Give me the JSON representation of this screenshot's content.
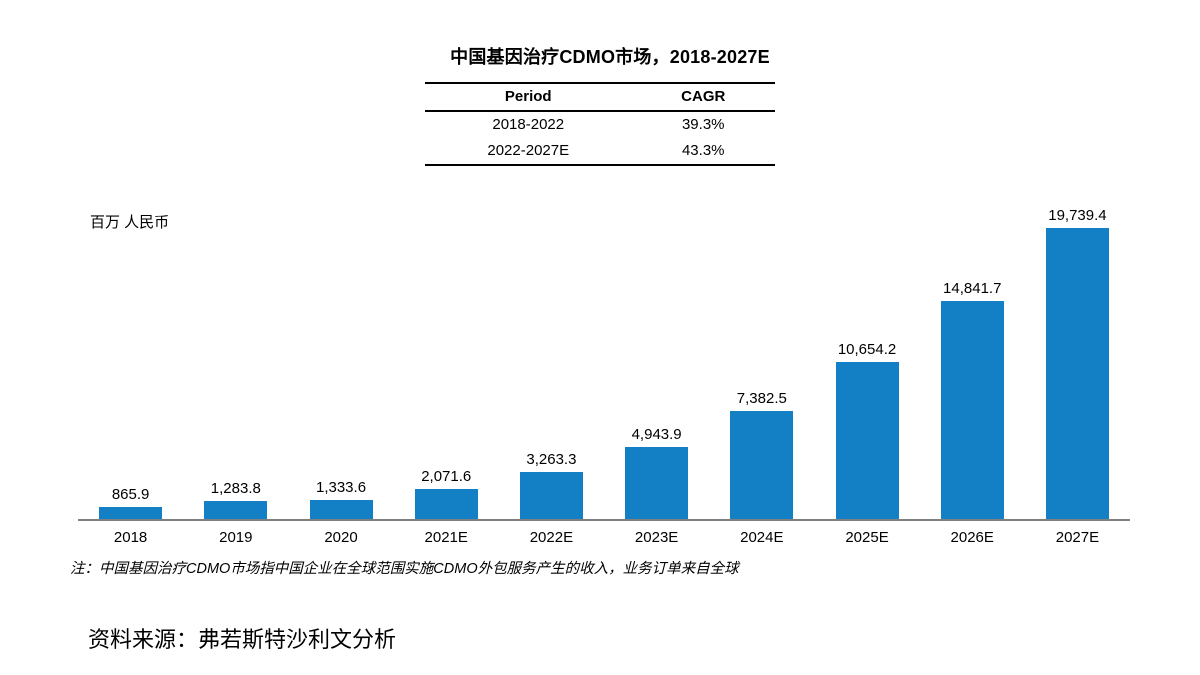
{
  "header": {
    "title": "中国基因治疗CDMO市场，2018-2027E"
  },
  "cagr_table": {
    "headers": [
      "Period",
      "CAGR"
    ],
    "rows": [
      {
        "period": "2018-2022",
        "cagr": "39.3%"
      },
      {
        "period": "2022-2027E",
        "cagr": "43.3%"
      }
    ]
  },
  "chart_data": {
    "type": "bar",
    "title": "中国基因治疗CDMO市场，2018-2027E",
    "unit_label": "百万 人民币",
    "xlabel": "",
    "ylabel": "百万 人民币",
    "categories": [
      "2018",
      "2019",
      "2020",
      "2021E",
      "2022E",
      "2023E",
      "2024E",
      "2025E",
      "2026E",
      "2027E"
    ],
    "values": [
      865.9,
      1283.8,
      1333.6,
      2071.6,
      3263.3,
      4943.9,
      7382.5,
      10654.2,
      14841.7,
      19739.4
    ],
    "value_labels": [
      "865.9",
      "1,283.8",
      "1,333.6",
      "2,071.6",
      "3,263.3",
      "4,943.9",
      "7,382.5",
      "10,654.2",
      "14,841.7",
      "19,739.4"
    ],
    "ylim": [
      0,
      20000
    ],
    "grid": false,
    "legend": false,
    "bar_color": "#1380C6",
    "axis_color": "#7f7f7f"
  },
  "footnote": {
    "note": "注：中国基因治疗CDMO市场指中国企业在全球范围实施CDMO外包服务产生的收入，业务订单来自全球",
    "source": "资料来源：弗若斯特沙利文分析"
  }
}
